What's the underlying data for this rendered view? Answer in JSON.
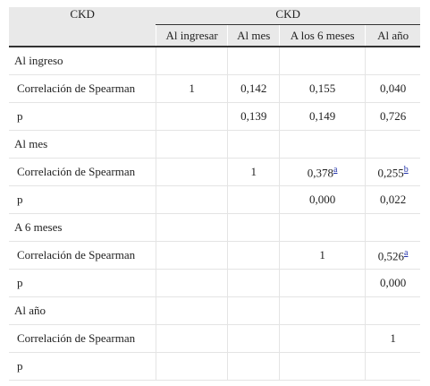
{
  "header": {
    "row1": [
      "CKD",
      "CKD"
    ],
    "columns": [
      "Al ingresar",
      "Al mes",
      "A los 6 meses",
      "Al año"
    ]
  },
  "sections": [
    {
      "label": "Al ingreso",
      "rows": [
        {
          "label": "Correlación de Spearman",
          "cells": [
            "1",
            "0,142",
            "0,155",
            "0,040"
          ]
        },
        {
          "label": "p",
          "cells": [
            null,
            "0,139",
            "0,149",
            "0,726"
          ]
        }
      ]
    },
    {
      "label": "Al mes",
      "rows": [
        {
          "label": "Correlación de Spearman",
          "cells": [
            null,
            "1",
            {
              "text": "0,378",
              "note": "a"
            },
            {
              "text": "0,255",
              "note": "b"
            }
          ]
        },
        {
          "label": "p",
          "cells": [
            null,
            null,
            "0,000",
            "0,022"
          ]
        }
      ]
    },
    {
      "label": "A 6 meses",
      "rows": [
        {
          "label": "Correlación de Spearman",
          "cells": [
            null,
            null,
            "1",
            {
              "text": "0,526",
              "note": "a"
            }
          ]
        },
        {
          "label": "p",
          "cells": [
            null,
            null,
            null,
            "0,000"
          ]
        }
      ]
    },
    {
      "label": "Al año",
      "rows": [
        {
          "label": "Correlación de Spearman",
          "cells": [
            null,
            null,
            null,
            "1"
          ]
        },
        {
          "label": "p",
          "cells": [
            null,
            null,
            null,
            null
          ]
        }
      ]
    }
  ]
}
